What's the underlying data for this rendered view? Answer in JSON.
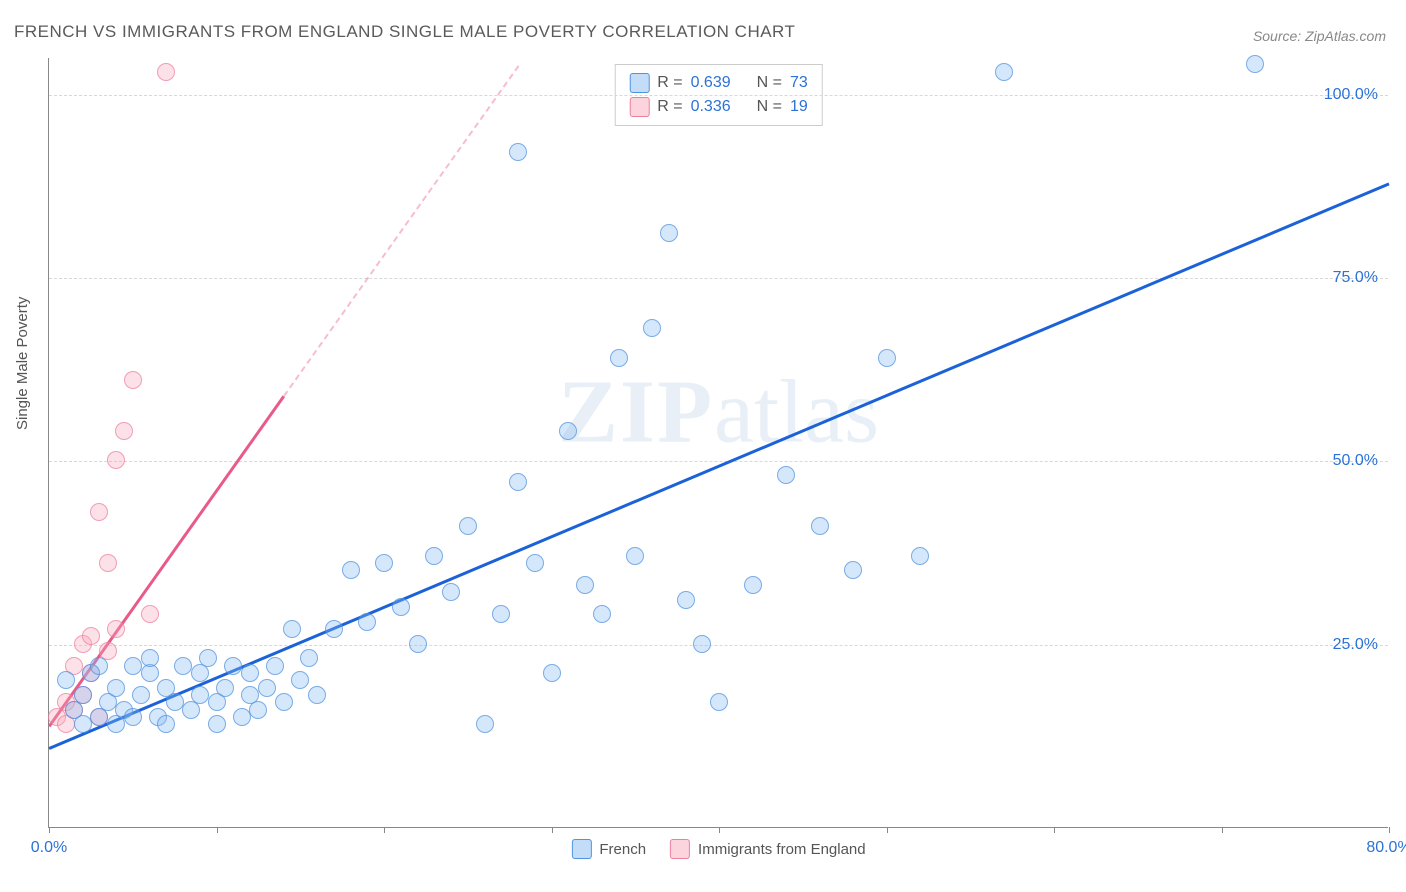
{
  "title": "FRENCH VS IMMIGRANTS FROM ENGLAND SINGLE MALE POVERTY CORRELATION CHART",
  "source_label": "Source: ZipAtlas.com",
  "ylabel": "Single Male Poverty",
  "watermark_a": "ZIP",
  "watermark_b": "atlas",
  "chart": {
    "type": "scatter",
    "xlim": [
      0,
      80
    ],
    "ylim": [
      0,
      105
    ],
    "y_gridlines": [
      25,
      50,
      75,
      100
    ],
    "y_tick_labels": [
      "25.0%",
      "50.0%",
      "75.0%",
      "100.0%"
    ],
    "x_tick_positions": [
      0,
      10,
      20,
      30,
      40,
      50,
      60,
      70,
      80
    ],
    "x_tick_labels": {
      "0": "0.0%",
      "80": "80.0%"
    },
    "background_color": "#ffffff",
    "grid_color": "#d8d8d8",
    "axis_label_color": "#2b72d6",
    "marker_size": 18,
    "series": {
      "french": {
        "label": "French",
        "color_fill": "rgba(135,185,240,0.35)",
        "color_stroke": "rgba(70,140,220,0.65)",
        "trend_color": "#1b62d8",
        "trend": {
          "x1": 0,
          "y1": 11,
          "x2": 80,
          "y2": 88
        },
        "R": "0.639",
        "N": "73",
        "points": [
          [
            1,
            20
          ],
          [
            1.5,
            16
          ],
          [
            2,
            14
          ],
          [
            2,
            18
          ],
          [
            2.5,
            21
          ],
          [
            3,
            15
          ],
          [
            3,
            22
          ],
          [
            3.5,
            17
          ],
          [
            4,
            14
          ],
          [
            4,
            19
          ],
          [
            4.5,
            16
          ],
          [
            5,
            22
          ],
          [
            5,
            15
          ],
          [
            5.5,
            18
          ],
          [
            6,
            21
          ],
          [
            6,
            23
          ],
          [
            6.5,
            15
          ],
          [
            7,
            19
          ],
          [
            7,
            14
          ],
          [
            7.5,
            17
          ],
          [
            8,
            22
          ],
          [
            8.5,
            16
          ],
          [
            9,
            21
          ],
          [
            9,
            18
          ],
          [
            9.5,
            23
          ],
          [
            10,
            14
          ],
          [
            10,
            17
          ],
          [
            10.5,
            19
          ],
          [
            11,
            22
          ],
          [
            11.5,
            15
          ],
          [
            12,
            18
          ],
          [
            12,
            21
          ],
          [
            12.5,
            16
          ],
          [
            13,
            19
          ],
          [
            13.5,
            22
          ],
          [
            14,
            17
          ],
          [
            14.5,
            27
          ],
          [
            15,
            20
          ],
          [
            15.5,
            23
          ],
          [
            16,
            18
          ],
          [
            17,
            27
          ],
          [
            18,
            35
          ],
          [
            19,
            28
          ],
          [
            20,
            36
          ],
          [
            21,
            30
          ],
          [
            22,
            25
          ],
          [
            23,
            37
          ],
          [
            24,
            32
          ],
          [
            25,
            41
          ],
          [
            26,
            14
          ],
          [
            27,
            29
          ],
          [
            28,
            47
          ],
          [
            28,
            92
          ],
          [
            29,
            36
          ],
          [
            30,
            21
          ],
          [
            31,
            54
          ],
          [
            32,
            33
          ],
          [
            33,
            29
          ],
          [
            34,
            64
          ],
          [
            35,
            37
          ],
          [
            36,
            68
          ],
          [
            37,
            81
          ],
          [
            38,
            31
          ],
          [
            39,
            25
          ],
          [
            40,
            17
          ],
          [
            42,
            33
          ],
          [
            44,
            48
          ],
          [
            46,
            41
          ],
          [
            48,
            35
          ],
          [
            50,
            64
          ],
          [
            52,
            37
          ],
          [
            57,
            103
          ],
          [
            72,
            104
          ]
        ]
      },
      "england": {
        "label": "Immigrants from England",
        "color_fill": "rgba(250,170,190,0.35)",
        "color_stroke": "rgba(235,120,150,0.65)",
        "trend_color": "#e85a88",
        "trend_solid": {
          "x1": 0,
          "y1": 14,
          "x2": 14,
          "y2": 59
        },
        "trend_dash": {
          "x1": 14,
          "y1": 59,
          "x2": 28,
          "y2": 104
        },
        "R": "0.336",
        "N": "19",
        "points": [
          [
            0.5,
            15
          ],
          [
            1,
            17
          ],
          [
            1,
            14
          ],
          [
            1.5,
            22
          ],
          [
            1.5,
            16
          ],
          [
            2,
            25
          ],
          [
            2,
            18
          ],
          [
            2.5,
            21
          ],
          [
            2.5,
            26
          ],
          [
            3,
            15
          ],
          [
            3,
            43
          ],
          [
            3.5,
            24
          ],
          [
            3.5,
            36
          ],
          [
            4,
            50
          ],
          [
            4,
            27
          ],
          [
            4.5,
            54
          ],
          [
            5,
            61
          ],
          [
            6,
            29
          ],
          [
            7,
            103
          ]
        ]
      }
    }
  },
  "rn_box": {
    "rows": [
      {
        "swatch": "blue",
        "R_label": "R =",
        "R": "0.639",
        "N_label": "N =",
        "N": "73"
      },
      {
        "swatch": "pink",
        "R_label": "R =",
        "R": "0.336",
        "N_label": "N =",
        "N": "19"
      }
    ]
  },
  "legend_bottom": [
    {
      "swatch": "blue",
      "label": "French"
    },
    {
      "swatch": "pink",
      "label": "Immigrants from England"
    }
  ]
}
